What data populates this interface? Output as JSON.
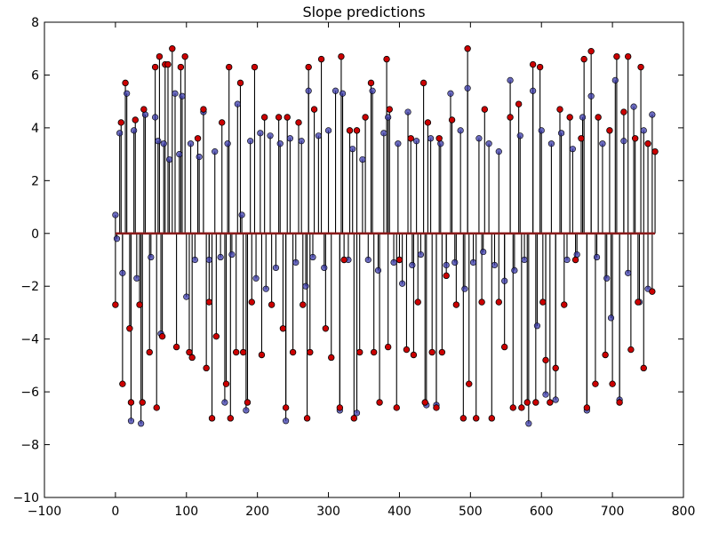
{
  "chart_data": {
    "type": "scatter",
    "title": "Slope predictions",
    "xlabel": "",
    "ylabel": "",
    "xlim": [
      -100,
      800
    ],
    "ylim": [
      -10,
      8
    ],
    "xticks": [
      -100,
      0,
      100,
      200,
      300,
      400,
      500,
      600,
      700,
      800
    ],
    "yticks": [
      -10,
      -8,
      -6,
      -4,
      -2,
      0,
      2,
      4,
      6,
      8
    ],
    "grid": false,
    "colors": {
      "red": "#cc0000",
      "blue": "#3a3aaa",
      "line": "#000000"
    },
    "series": [
      {
        "role": "target",
        "color": "#cc0000",
        "points": [
          [
            0,
            -2.7
          ],
          [
            8,
            4.2
          ],
          [
            10,
            -5.7
          ],
          [
            14,
            5.7
          ],
          [
            20,
            -3.6
          ],
          [
            22,
            -6.4
          ],
          [
            28,
            4.3
          ],
          [
            34,
            -2.7
          ],
          [
            38,
            -6.4
          ],
          [
            40,
            4.7
          ],
          [
            48,
            -4.5
          ],
          [
            56,
            6.3
          ],
          [
            58,
            -6.6
          ],
          [
            62,
            6.7
          ],
          [
            66,
            -3.9
          ],
          [
            70,
            6.4
          ],
          [
            74,
            6.4
          ],
          [
            80,
            7.0
          ],
          [
            86,
            -4.3
          ],
          [
            92,
            6.3
          ],
          [
            98,
            6.7
          ],
          [
            104,
            -4.5
          ],
          [
            108,
            -4.7
          ],
          [
            116,
            3.6
          ],
          [
            124,
            4.7
          ],
          [
            128,
            -5.1
          ],
          [
            132,
            -2.6
          ],
          [
            136,
            -7.0
          ],
          [
            142,
            -3.9
          ],
          [
            150,
            4.2
          ],
          [
            156,
            -5.7
          ],
          [
            160,
            6.3
          ],
          [
            162,
            -7.0
          ],
          [
            170,
            -4.5
          ],
          [
            176,
            5.7
          ],
          [
            180,
            -4.5
          ],
          [
            186,
            -6.4
          ],
          [
            192,
            -2.6
          ],
          [
            196,
            6.3
          ],
          [
            206,
            -4.6
          ],
          [
            210,
            4.4
          ],
          [
            220,
            -2.7
          ],
          [
            230,
            4.4
          ],
          [
            236,
            -3.6
          ],
          [
            240,
            -6.6
          ],
          [
            242,
            4.4
          ],
          [
            250,
            -4.5
          ],
          [
            258,
            4.2
          ],
          [
            264,
            -2.7
          ],
          [
            270,
            -7.0
          ],
          [
            272,
            6.3
          ],
          [
            274,
            -4.5
          ],
          [
            280,
            4.7
          ],
          [
            290,
            6.6
          ],
          [
            296,
            -3.6
          ],
          [
            304,
            -4.7
          ],
          [
            316,
            -6.6
          ],
          [
            318,
            6.7
          ],
          [
            322,
            -1.0
          ],
          [
            330,
            3.9
          ],
          [
            336,
            -7.0
          ],
          [
            340,
            3.9
          ],
          [
            344,
            -4.5
          ],
          [
            352,
            4.4
          ],
          [
            360,
            5.7
          ],
          [
            364,
            -4.5
          ],
          [
            372,
            -6.4
          ],
          [
            382,
            6.6
          ],
          [
            384,
            -4.3
          ],
          [
            386,
            4.7
          ],
          [
            396,
            -6.6
          ],
          [
            400,
            -1.0
          ],
          [
            410,
            -4.4
          ],
          [
            416,
            3.6
          ],
          [
            420,
            -4.6
          ],
          [
            426,
            -2.6
          ],
          [
            434,
            5.7
          ],
          [
            436,
            -6.4
          ],
          [
            440,
            4.2
          ],
          [
            446,
            -4.5
          ],
          [
            452,
            -6.6
          ],
          [
            456,
            3.6
          ],
          [
            460,
            -4.5
          ],
          [
            466,
            -1.6
          ],
          [
            474,
            4.3
          ],
          [
            480,
            -2.7
          ],
          [
            490,
            -7.0
          ],
          [
            496,
            7.0
          ],
          [
            498,
            -5.7
          ],
          [
            508,
            -7.0
          ],
          [
            516,
            -2.6
          ],
          [
            520,
            4.7
          ],
          [
            530,
            -7.0
          ],
          [
            540,
            -2.6
          ],
          [
            548,
            -4.3
          ],
          [
            556,
            4.4
          ],
          [
            560,
            -6.6
          ],
          [
            568,
            4.9
          ],
          [
            572,
            -6.6
          ],
          [
            580,
            -6.4
          ],
          [
            588,
            6.4
          ],
          [
            592,
            -6.4
          ],
          [
            598,
            6.3
          ],
          [
            602,
            -2.6
          ],
          [
            606,
            -4.8
          ],
          [
            612,
            -6.4
          ],
          [
            620,
            -5.1
          ],
          [
            626,
            4.7
          ],
          [
            632,
            -2.7
          ],
          [
            640,
            4.4
          ],
          [
            648,
            -1.0
          ],
          [
            656,
            3.6
          ],
          [
            660,
            6.6
          ],
          [
            664,
            -6.6
          ],
          [
            670,
            6.9
          ],
          [
            676,
            -5.7
          ],
          [
            680,
            4.4
          ],
          [
            690,
            -4.6
          ],
          [
            696,
            3.9
          ],
          [
            700,
            -5.7
          ],
          [
            706,
            6.7
          ],
          [
            710,
            -6.4
          ],
          [
            716,
            4.6
          ],
          [
            722,
            6.7
          ],
          [
            726,
            -4.4
          ],
          [
            732,
            3.6
          ],
          [
            736,
            -2.6
          ],
          [
            740,
            6.3
          ],
          [
            744,
            -5.1
          ],
          [
            750,
            3.4
          ],
          [
            756,
            -2.2
          ],
          [
            760,
            3.1
          ]
        ]
      },
      {
        "role": "prediction",
        "color": "#3a3aaa",
        "points": [
          [
            0,
            0.7
          ],
          [
            2,
            -0.2
          ],
          [
            6,
            3.8
          ],
          [
            10,
            -1.5
          ],
          [
            16,
            5.3
          ],
          [
            22,
            -7.1
          ],
          [
            26,
            3.9
          ],
          [
            30,
            -1.7
          ],
          [
            36,
            -7.2
          ],
          [
            42,
            4.5
          ],
          [
            50,
            -0.9
          ],
          [
            56,
            4.4
          ],
          [
            60,
            3.5
          ],
          [
            64,
            -3.8
          ],
          [
            68,
            3.4
          ],
          [
            76,
            2.8
          ],
          [
            84,
            5.3
          ],
          [
            90,
            3.0
          ],
          [
            94,
            5.2
          ],
          [
            100,
            -2.4
          ],
          [
            106,
            3.4
          ],
          [
            112,
            -1.0
          ],
          [
            118,
            2.9
          ],
          [
            124,
            4.6
          ],
          [
            132,
            -1.0
          ],
          [
            140,
            3.1
          ],
          [
            148,
            -0.9
          ],
          [
            154,
            -6.4
          ],
          [
            158,
            3.4
          ],
          [
            164,
            -0.8
          ],
          [
            172,
            4.9
          ],
          [
            178,
            0.7
          ],
          [
            184,
            -6.7
          ],
          [
            190,
            3.5
          ],
          [
            198,
            -1.7
          ],
          [
            204,
            3.8
          ],
          [
            212,
            -2.1
          ],
          [
            218,
            3.7
          ],
          [
            226,
            -1.3
          ],
          [
            232,
            3.4
          ],
          [
            240,
            -7.1
          ],
          [
            246,
            3.6
          ],
          [
            254,
            -1.1
          ],
          [
            262,
            3.5
          ],
          [
            268,
            -2.0
          ],
          [
            272,
            5.4
          ],
          [
            278,
            -0.9
          ],
          [
            286,
            3.7
          ],
          [
            294,
            -1.3
          ],
          [
            300,
            3.9
          ],
          [
            310,
            5.4
          ],
          [
            316,
            -6.7
          ],
          [
            320,
            5.3
          ],
          [
            328,
            -1.0
          ],
          [
            334,
            3.2
          ],
          [
            340,
            -6.8
          ],
          [
            348,
            2.8
          ],
          [
            356,
            -1.0
          ],
          [
            362,
            5.4
          ],
          [
            370,
            -1.4
          ],
          [
            378,
            3.8
          ],
          [
            384,
            4.4
          ],
          [
            392,
            -1.1
          ],
          [
            398,
            3.4
          ],
          [
            404,
            -1.9
          ],
          [
            412,
            4.6
          ],
          [
            418,
            -1.2
          ],
          [
            424,
            3.5
          ],
          [
            430,
            -0.8
          ],
          [
            438,
            -6.5
          ],
          [
            444,
            3.6
          ],
          [
            452,
            -6.5
          ],
          [
            458,
            3.4
          ],
          [
            466,
            -1.2
          ],
          [
            472,
            5.3
          ],
          [
            478,
            -1.1
          ],
          [
            486,
            3.9
          ],
          [
            492,
            -2.1
          ],
          [
            496,
            5.5
          ],
          [
            504,
            -1.1
          ],
          [
            512,
            3.6
          ],
          [
            518,
            -0.7
          ],
          [
            526,
            3.4
          ],
          [
            534,
            -1.2
          ],
          [
            540,
            3.1
          ],
          [
            548,
            -1.8
          ],
          [
            556,
            5.8
          ],
          [
            562,
            -1.4
          ],
          [
            570,
            3.7
          ],
          [
            576,
            -1.0
          ],
          [
            582,
            -7.2
          ],
          [
            588,
            5.4
          ],
          [
            594,
            -3.5
          ],
          [
            600,
            3.9
          ],
          [
            606,
            -6.1
          ],
          [
            614,
            3.4
          ],
          [
            620,
            -6.3
          ],
          [
            628,
            3.8
          ],
          [
            636,
            -1.0
          ],
          [
            644,
            3.2
          ],
          [
            650,
            -0.8
          ],
          [
            658,
            4.4
          ],
          [
            664,
            -6.7
          ],
          [
            670,
            5.2
          ],
          [
            678,
            -0.9
          ],
          [
            686,
            3.4
          ],
          [
            692,
            -1.7
          ],
          [
            698,
            -3.2
          ],
          [
            704,
            5.8
          ],
          [
            710,
            -6.3
          ],
          [
            716,
            3.5
          ],
          [
            722,
            -1.5
          ],
          [
            730,
            4.8
          ],
          [
            738,
            -2.6
          ],
          [
            744,
            3.9
          ],
          [
            750,
            -2.1
          ],
          [
            756,
            4.5
          ]
        ]
      }
    ]
  }
}
